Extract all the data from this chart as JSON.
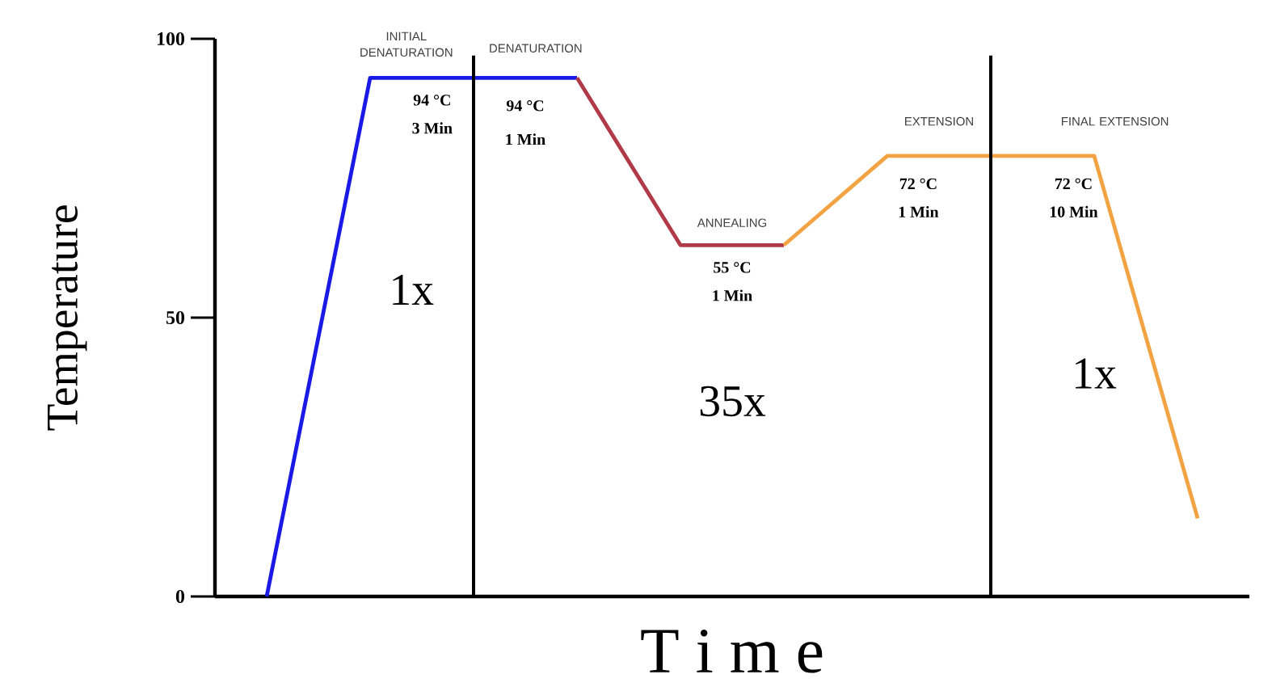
{
  "chart_data": {
    "type": "line",
    "xlabel": "T i m e",
    "ylabel": "Temperature",
    "categories": [
      null,
      null,
      null,
      null,
      null,
      null,
      null,
      null,
      null,
      null
    ],
    "ylim": [
      0,
      100
    ],
    "yticks": [
      0,
      50,
      100
    ],
    "tick_labels": "y",
    "grid": false,
    "marker": "none",
    "line_style": "solid",
    "series": [
      {
        "color": "#1a1ae6",
        "values": [
          0,
          93,
          93,
          93,
          null,
          null,
          null,
          null,
          null,
          null
        ]
      },
      {
        "color": "#b03a48",
        "values": [
          null,
          null,
          null,
          93,
          63,
          63,
          null,
          null,
          null,
          null
        ]
      },
      {
        "color": "#f2a444",
        "values": [
          null,
          null,
          null,
          null,
          null,
          63,
          79,
          79,
          79,
          14
        ]
      }
    ],
    "annotations": [
      "INITIAL DENATURATION",
      "DENATURATION",
      "ANNEALING",
      "EXTENSION",
      "FINAL EXTENSION",
      "94 °C",
      "3 Min",
      "94 °C",
      "1 Min",
      "55 °C",
      "1 Min",
      "72 °C",
      "1 Min",
      "72 °C",
      "10 Min",
      "1x",
      "35x",
      "1x"
    ]
  }
}
